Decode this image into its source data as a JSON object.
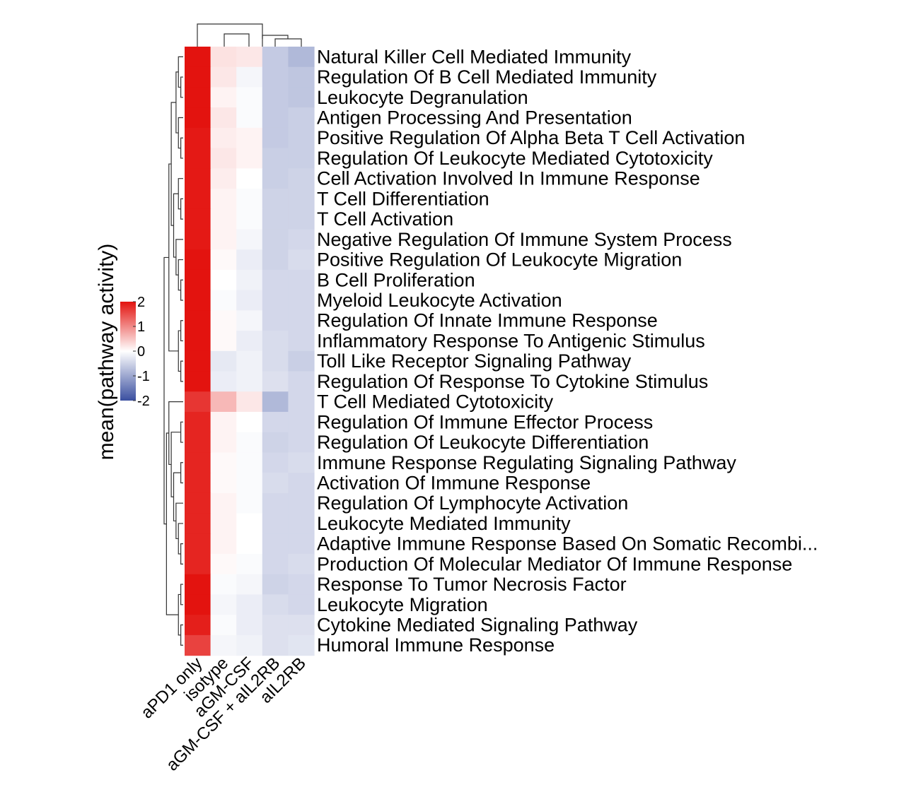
{
  "chart_data": {
    "type": "heatmap",
    "legend_title": "mean(pathway activity)",
    "colorbar": {
      "ticks": [
        2,
        1,
        0,
        -1,
        -2
      ],
      "tick_labels": [
        "2",
        "1",
        "0",
        "-1",
        "-2"
      ],
      "range": [
        -2,
        2
      ],
      "colors": {
        "low": "#3a4fa0",
        "mid": "#ffffff",
        "high": "#e3130f"
      }
    },
    "columns": [
      "aPD1 only",
      "isotype",
      "aGM-CSF",
      "aGM-CSF + aIL2RB",
      "aIL2RB"
    ],
    "rows": [
      "Natural Killer Cell Mediated Immunity",
      "Regulation Of B Cell Mediated Immunity",
      "Leukocyte Degranulation",
      "Antigen Processing And Presentation",
      "Positive Regulation Of Alpha Beta T Cell Activation",
      "Regulation Of Leukocyte Mediated Cytotoxicity",
      "Cell Activation Involved In Immune Response",
      "T Cell Differentiation",
      "T Cell Activation",
      "Negative Regulation Of Immune System Process",
      "Positive Regulation Of Leukocyte Migration",
      "B Cell Proliferation",
      "Myeloid Leukocyte Activation",
      "Regulation Of Innate Immune Response",
      "Inflammatory Response To Antigenic Stimulus",
      "Toll Like Receptor Signaling Pathway",
      "Regulation Of Response To Cytokine Stimulus",
      "T Cell Mediated Cytotoxicity",
      "Regulation Of Immune Effector Process",
      "Regulation Of Leukocyte Differentiation",
      "Immune Response Regulating Signaling Pathway",
      "Activation Of Immune Response",
      "Regulation Of Lymphocyte Activation",
      "Leukocyte Mediated Immunity",
      "Adaptive Immune Response Based On Somatic Recombi...",
      "Production Of Molecular Mediator Of Immune Response",
      "Response To Tumor Necrosis Factor",
      "Leukocyte Migration",
      "Cytokine Mediated Signaling Pathway",
      "Humoral Immune Response"
    ],
    "values": [
      [
        2.0,
        0.25,
        0.2,
        -0.6,
        -0.8
      ],
      [
        2.0,
        0.2,
        -0.1,
        -0.6,
        -0.65
      ],
      [
        2.0,
        0.1,
        -0.05,
        -0.6,
        -0.65
      ],
      [
        2.0,
        0.2,
        -0.05,
        -0.6,
        -0.55
      ],
      [
        1.95,
        0.15,
        0.1,
        -0.6,
        -0.55
      ],
      [
        1.95,
        0.2,
        0.1,
        -0.55,
        -0.55
      ],
      [
        1.95,
        0.15,
        0.0,
        -0.55,
        -0.5
      ],
      [
        1.95,
        0.1,
        -0.05,
        -0.5,
        -0.5
      ],
      [
        1.95,
        0.1,
        -0.05,
        -0.5,
        -0.5
      ],
      [
        1.95,
        0.1,
        -0.1,
        -0.5,
        -0.45
      ],
      [
        2.0,
        0.05,
        -0.2,
        -0.5,
        -0.4
      ],
      [
        2.0,
        0.0,
        -0.15,
        -0.45,
        -0.45
      ],
      [
        2.0,
        -0.05,
        -0.2,
        -0.45,
        -0.45
      ],
      [
        2.0,
        0.05,
        -0.1,
        -0.45,
        -0.45
      ],
      [
        2.0,
        0.05,
        -0.2,
        -0.4,
        -0.45
      ],
      [
        2.0,
        -0.25,
        -0.15,
        -0.4,
        -0.55
      ],
      [
        2.0,
        -0.2,
        -0.15,
        -0.35,
        -0.45
      ],
      [
        1.7,
        0.6,
        0.2,
        -0.8,
        -0.45
      ],
      [
        1.85,
        0.1,
        0.0,
        -0.45,
        -0.45
      ],
      [
        1.85,
        0.1,
        -0.05,
        -0.5,
        -0.45
      ],
      [
        1.85,
        0.05,
        -0.05,
        -0.45,
        -0.4
      ],
      [
        1.85,
        0.05,
        -0.05,
        -0.4,
        -0.45
      ],
      [
        1.85,
        0.1,
        -0.05,
        -0.45,
        -0.45
      ],
      [
        1.85,
        0.1,
        0.0,
        -0.45,
        -0.45
      ],
      [
        1.85,
        0.1,
        0.0,
        -0.45,
        -0.45
      ],
      [
        1.85,
        0.05,
        -0.05,
        -0.45,
        -0.4
      ],
      [
        2.0,
        -0.05,
        -0.1,
        -0.5,
        -0.45
      ],
      [
        2.0,
        -0.1,
        -0.2,
        -0.4,
        -0.45
      ],
      [
        1.9,
        -0.05,
        -0.2,
        -0.35,
        -0.35
      ],
      [
        1.6,
        -0.1,
        -0.15,
        -0.35,
        -0.3
      ]
    ]
  }
}
